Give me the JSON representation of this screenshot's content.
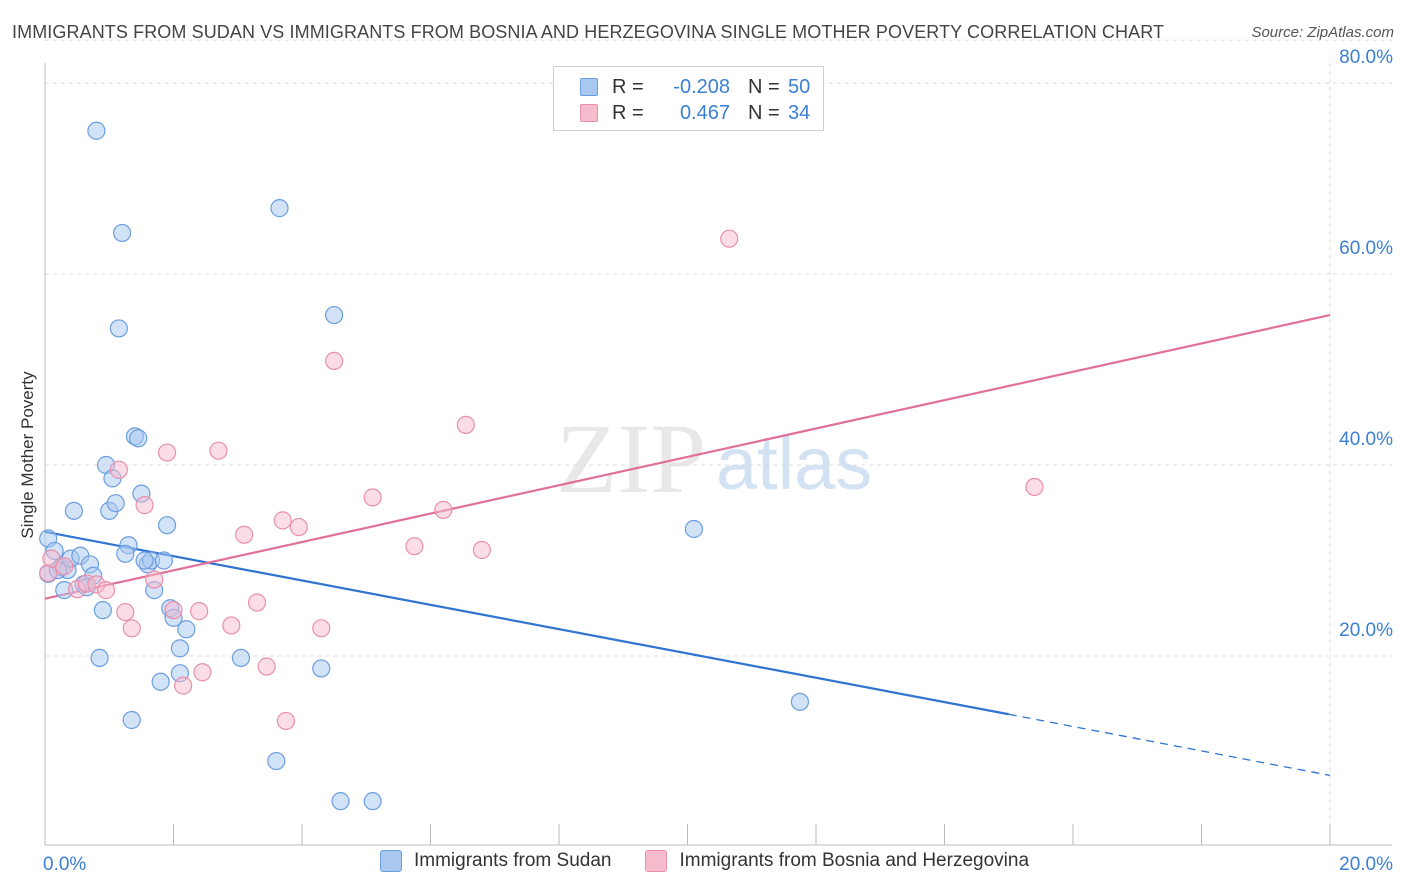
{
  "title": "IMMIGRANTS FROM SUDAN VS IMMIGRANTS FROM BOSNIA AND HERZEGOVINA SINGLE MOTHER POVERTY CORRELATION CHART",
  "source": "Source: ZipAtlas.com",
  "watermark": {
    "zip": "ZIP",
    "atlas": "atlas"
  },
  "colors": {
    "sudan_fill": "#a8c8f0",
    "sudan_stroke": "#6a9ee0",
    "sudan_line": "#2f74d0",
    "bosnia_fill": "#f6bccd",
    "bosnia_stroke": "#e890ac",
    "bosnia_line": "#e0709a",
    "axis_label_blue": "#3b7fd4",
    "grid": "#dddddd"
  },
  "legend": {
    "r_label": "R =",
    "n_label": "N =",
    "sudan_r": "-0.208",
    "sudan_n": "50",
    "bosnia_r": "0.467",
    "bosnia_n": "34"
  },
  "chart_data": {
    "type": "scatter",
    "title": "IMMIGRANTS FROM SUDAN VS IMMIGRANTS FROM BOSNIA AND HERZEGOVINA SINGLE MOTHER POVERTY CORRELATION CHART",
    "xlabel": "",
    "ylabel": "Single Mother Poverty",
    "xlim": [
      0,
      20
    ],
    "ylim": [
      0,
      85
    ],
    "x_tick_labels": [
      "0.0%",
      "20.0%"
    ],
    "y_ticks": [
      20,
      40,
      60,
      80
    ],
    "y_tick_labels": [
      "20.0%",
      "40.0%",
      "60.0%",
      "80.0%"
    ],
    "grid": true,
    "legend_position": "top-center",
    "series": [
      {
        "name": "Immigrants from Sudan",
        "r": -0.208,
        "n": 50,
        "trend": {
          "x0": 0,
          "y0": 33.0,
          "x1": 15.0,
          "y1": 13.9,
          "dash_to_x": 20,
          "dash_to_y": 7.5
        },
        "points": [
          [
            0.05,
            32.3
          ],
          [
            0.05,
            28.6
          ],
          [
            0.15,
            31.0
          ],
          [
            0.25,
            29.3
          ],
          [
            0.3,
            26.9
          ],
          [
            0.35,
            29.0
          ],
          [
            0.4,
            30.2
          ],
          [
            0.55,
            30.5
          ],
          [
            0.6,
            27.5
          ],
          [
            0.7,
            29.6
          ],
          [
            0.75,
            28.4
          ],
          [
            0.8,
            75.0
          ],
          [
            0.85,
            19.8
          ],
          [
            0.9,
            24.8
          ],
          [
            0.95,
            40.0
          ],
          [
            1.0,
            35.2
          ],
          [
            1.05,
            38.6
          ],
          [
            1.1,
            36.0
          ],
          [
            1.2,
            64.3
          ],
          [
            1.15,
            54.3
          ],
          [
            1.3,
            31.6
          ],
          [
            1.25,
            30.7
          ],
          [
            1.35,
            13.3
          ],
          [
            1.4,
            43.0
          ],
          [
            1.45,
            42.8
          ],
          [
            1.5,
            37.0
          ],
          [
            1.6,
            29.6
          ],
          [
            1.65,
            30.0
          ],
          [
            1.7,
            26.9
          ],
          [
            1.8,
            17.3
          ],
          [
            1.85,
            30.0
          ],
          [
            1.9,
            33.7
          ],
          [
            1.95,
            25.0
          ],
          [
            2.0,
            24.0
          ],
          [
            2.1,
            18.2
          ],
          [
            2.1,
            20.8
          ],
          [
            2.2,
            22.8
          ],
          [
            3.05,
            19.8
          ],
          [
            3.6,
            9.0
          ],
          [
            3.65,
            66.9
          ],
          [
            4.3,
            18.7
          ],
          [
            4.5,
            55.7
          ],
          [
            4.6,
            4.8
          ],
          [
            5.1,
            4.8
          ],
          [
            10.1,
            33.3
          ],
          [
            11.75,
            15.2
          ],
          [
            0.45,
            35.2
          ],
          [
            0.2,
            29.0
          ],
          [
            0.65,
            27.2
          ],
          [
            1.55,
            30.0
          ]
        ]
      },
      {
        "name": "Immigrants from Bosnia and Herzegovina",
        "r": 0.467,
        "n": 34,
        "trend": {
          "x0": 0,
          "y0": 26.0,
          "x1": 20,
          "y1": 55.7
        },
        "points": [
          [
            0.05,
            28.7
          ],
          [
            0.1,
            30.2
          ],
          [
            0.3,
            29.4
          ],
          [
            0.5,
            27.0
          ],
          [
            0.65,
            27.6
          ],
          [
            0.8,
            27.5
          ],
          [
            0.95,
            26.9
          ],
          [
            1.15,
            39.5
          ],
          [
            1.25,
            24.6
          ],
          [
            1.35,
            22.9
          ],
          [
            1.55,
            35.8
          ],
          [
            1.7,
            28.0
          ],
          [
            1.9,
            41.3
          ],
          [
            2.0,
            24.8
          ],
          [
            2.15,
            16.9
          ],
          [
            2.4,
            24.7
          ],
          [
            2.45,
            18.3
          ],
          [
            2.7,
            41.5
          ],
          [
            2.9,
            23.2
          ],
          [
            3.1,
            32.7
          ],
          [
            3.3,
            25.6
          ],
          [
            3.45,
            18.9
          ],
          [
            3.7,
            34.2
          ],
          [
            3.75,
            13.2
          ],
          [
            3.95,
            33.5
          ],
          [
            4.3,
            22.9
          ],
          [
            4.5,
            50.9
          ],
          [
            5.1,
            36.6
          ],
          [
            5.75,
            31.5
          ],
          [
            6.2,
            35.3
          ],
          [
            6.55,
            44.2
          ],
          [
            6.8,
            31.1
          ],
          [
            10.65,
            63.7
          ],
          [
            15.4,
            37.7
          ]
        ]
      }
    ]
  }
}
